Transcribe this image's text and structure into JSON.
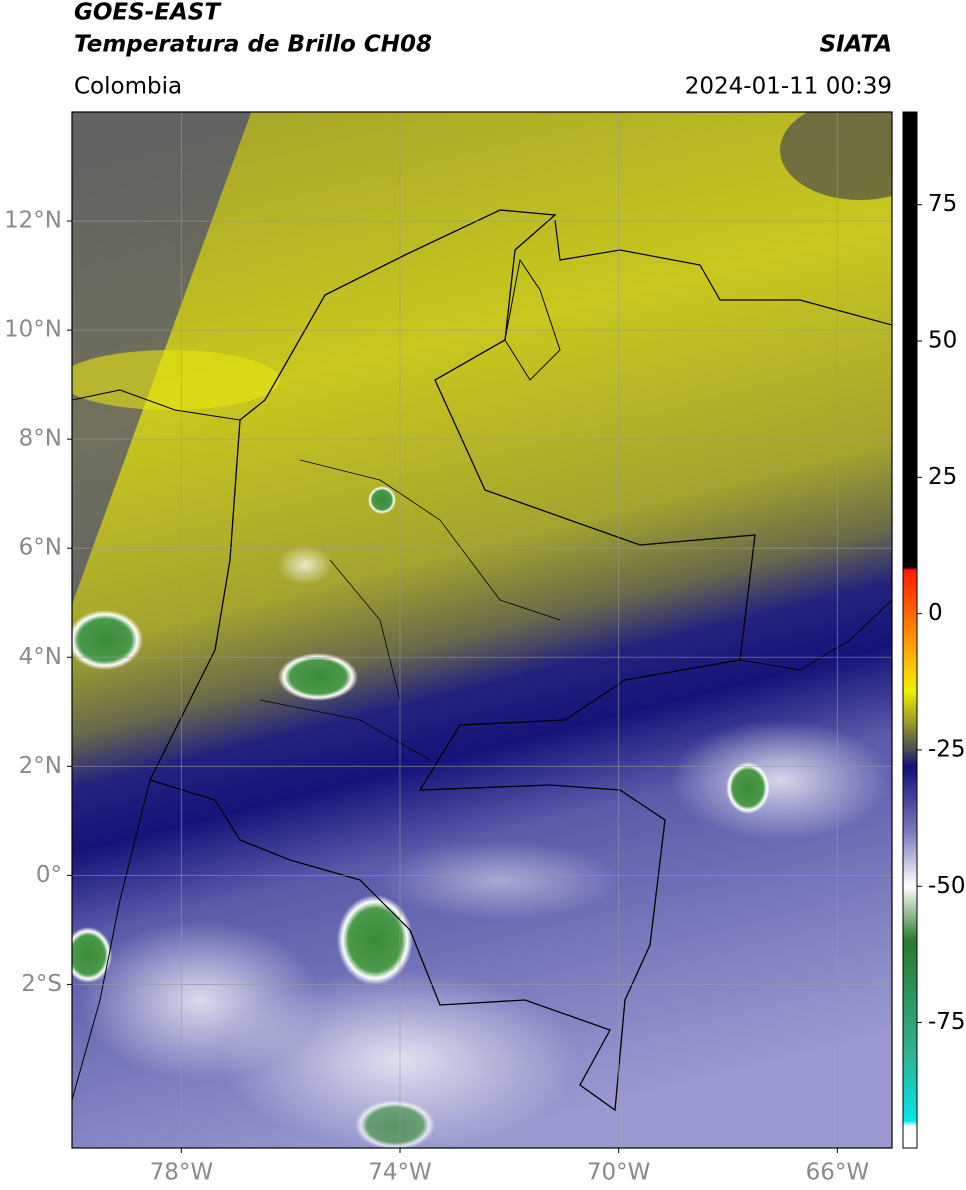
{
  "header": {
    "title": "GOES-EAST",
    "subtitle": "Temperatura de Brillo CH08",
    "brand": "SIATA",
    "region": "Colombia",
    "timestamp": "2024-01-11 00:39"
  },
  "map": {
    "xlim": [
      -80,
      -65
    ],
    "ylim": [
      -5,
      14
    ],
    "xticks": [
      {
        "value": -78,
        "label": "78°W"
      },
      {
        "value": -74,
        "label": "74°W"
      },
      {
        "value": -70,
        "label": "70°W"
      },
      {
        "value": -66,
        "label": "66°W"
      }
    ],
    "yticks": [
      {
        "value": -2,
        "label": "2°S"
      },
      {
        "value": 0,
        "label": "0°"
      },
      {
        "value": 2,
        "label": "2°N"
      },
      {
        "value": 4,
        "label": "4°N"
      },
      {
        "value": 6,
        "label": "6°N"
      },
      {
        "value": 8,
        "label": "8°N"
      },
      {
        "value": 10,
        "label": "10°N"
      },
      {
        "value": 12,
        "label": "12°N"
      }
    ],
    "grid": true
  },
  "colorbar": {
    "lim": [
      -98,
      92
    ],
    "ticks": [
      75,
      50,
      25,
      0,
      -25,
      -50,
      -75
    ],
    "stops": [
      {
        "value": 92,
        "color": "#000000"
      },
      {
        "value": 8.5,
        "color": "#000000"
      },
      {
        "value": 8,
        "color": "#ff1a00"
      },
      {
        "value": -5,
        "color": "#ff9900"
      },
      {
        "value": -14,
        "color": "#f0f000"
      },
      {
        "value": -20,
        "color": "#9a9a2a"
      },
      {
        "value": -25,
        "color": "#4a4a55"
      },
      {
        "value": -28,
        "color": "#10107a"
      },
      {
        "value": -40,
        "color": "#7a7ac0"
      },
      {
        "value": -50,
        "color": "#ffffff"
      },
      {
        "value": -60,
        "color": "#2a7a2a"
      },
      {
        "value": -80,
        "color": "#30b090"
      },
      {
        "value": -93,
        "color": "#00e8e8"
      },
      {
        "value": -94,
        "color": "#ffffff"
      },
      {
        "value": -98,
        "color": "#ffffff"
      }
    ]
  }
}
